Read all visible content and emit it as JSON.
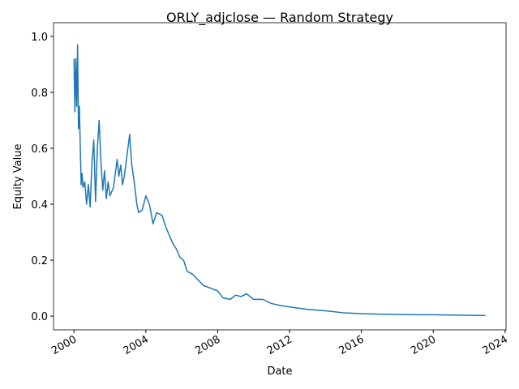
{
  "chart_data": {
    "type": "line",
    "title": "ORLY_adjclose — Random Strategy",
    "xlabel": "Date",
    "ylabel": "Equity Value",
    "color": "#1f77b4",
    "grid": false,
    "x": [
      2000.0,
      2000.05,
      2000.1,
      2000.15,
      2000.2,
      2000.25,
      2000.3,
      2000.35,
      2000.4,
      2000.45,
      2000.5,
      2000.6,
      2000.7,
      2000.8,
      2000.9,
      2001.0,
      2001.1,
      2001.2,
      2001.3,
      2001.4,
      2001.5,
      2001.6,
      2001.7,
      2001.8,
      2001.9,
      2002.0,
      2002.2,
      2002.4,
      2002.5,
      2002.6,
      2002.7,
      2002.8,
      2003.0,
      2003.1,
      2003.2,
      2003.35,
      2003.5,
      2003.6,
      2003.8,
      2004.0,
      2004.2,
      2004.4,
      2004.6,
      2004.9,
      2005.1,
      2005.3,
      2005.5,
      2005.7,
      2005.9,
      2006.1,
      2006.3,
      2006.6,
      2006.9,
      2007.2,
      2007.6,
      2008.0,
      2008.3,
      2008.7,
      2009.0,
      2009.3,
      2009.6,
      2010.0,
      2010.5,
      2011.0,
      2011.5,
      2012.0,
      2013.0,
      2014.0,
      2015.0,
      2016.0,
      2017.0,
      2018.0,
      2019.0,
      2020.0,
      2021.0,
      2022.0,
      2022.9
    ],
    "values": [
      0.92,
      0.73,
      0.92,
      0.75,
      0.97,
      0.67,
      0.75,
      0.6,
      0.47,
      0.51,
      0.46,
      0.48,
      0.4,
      0.47,
      0.39,
      0.55,
      0.63,
      0.41,
      0.6,
      0.7,
      0.55,
      0.45,
      0.52,
      0.42,
      0.48,
      0.43,
      0.46,
      0.56,
      0.5,
      0.54,
      0.47,
      0.5,
      0.6,
      0.65,
      0.55,
      0.48,
      0.4,
      0.37,
      0.38,
      0.43,
      0.4,
      0.33,
      0.37,
      0.36,
      0.32,
      0.29,
      0.26,
      0.24,
      0.21,
      0.2,
      0.16,
      0.15,
      0.13,
      0.11,
      0.1,
      0.09,
      0.065,
      0.06,
      0.075,
      0.07,
      0.08,
      0.06,
      0.06,
      0.045,
      0.038,
      0.033,
      0.024,
      0.019,
      0.012,
      0.009,
      0.007,
      0.006,
      0.005,
      0.005,
      0.004,
      0.003,
      0.002
    ],
    "xlim": [
      1998.86,
      2024.05
    ],
    "xticks": [
      2000,
      2004,
      2008,
      2012,
      2016,
      2020,
      2024
    ],
    "ylim": [
      -0.049,
      1.049
    ],
    "yticks": [
      {
        "value": 0,
        "label": "0.0"
      },
      0.2,
      0.4,
      0.6,
      0.8,
      {
        "value": 1,
        "label": "1.0"
      }
    ]
  }
}
